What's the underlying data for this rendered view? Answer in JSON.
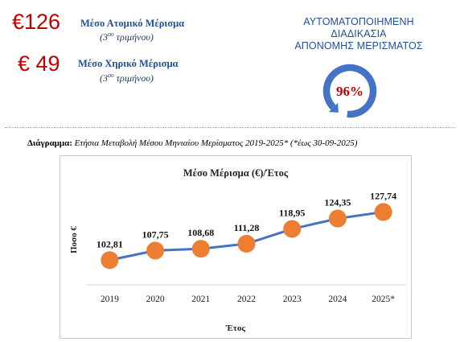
{
  "stats": [
    {
      "value": "€126",
      "label": "Μέσο Ατομικό Μέρισμα",
      "sub_number": "3",
      "sub_sup": "ου",
      "sub_text": "τριμήνου"
    },
    {
      "value": "€ 49",
      "label": "Μέσο Χηρικό Μέρισμα",
      "sub_number": "3",
      "sub_sup": "ου",
      "sub_text": "τριμήνου"
    }
  ],
  "badge": {
    "lines": [
      "ΑΥΤΟΜΑΤΟΠΟΙΗΜΕΝΗ",
      "ΔΙΑΔΙΚΑΣΙΑ",
      "ΑΠΟΝΟΜΗΣ ΜΕΡΙΣΜΑΤΟΣ"
    ],
    "percent_label": "96%",
    "percent": 96,
    "ring_color": "#4472c4",
    "text_color": "#c00000"
  },
  "caption": {
    "prefix": "Διάγραμμα:",
    "text": "Ετήσια Μεταβολή Μέσου Μηνιαίου Μερίσματος 2019-2025* (*έως 30-09-2025)"
  },
  "chart_data": {
    "type": "line",
    "title": "Μέσο Μέρισμα (€)/Έτος",
    "xlabel": "Έτος",
    "ylabel": "Ποσο €",
    "categories": [
      "2019",
      "2020",
      "2021",
      "2022",
      "2023",
      "2024",
      "2025*"
    ],
    "values": [
      102.81,
      107.75,
      108.68,
      111.28,
      118.95,
      124.35,
      127.74
    ],
    "data_labels": [
      "102,81",
      "107,75",
      "108,68",
      "111,28",
      "118,95",
      "124,35",
      "127,74"
    ],
    "ylim": [
      90,
      140
    ],
    "grid": false,
    "legend": false,
    "line_color": "#4472c4",
    "marker_color": "#ed7d31"
  }
}
